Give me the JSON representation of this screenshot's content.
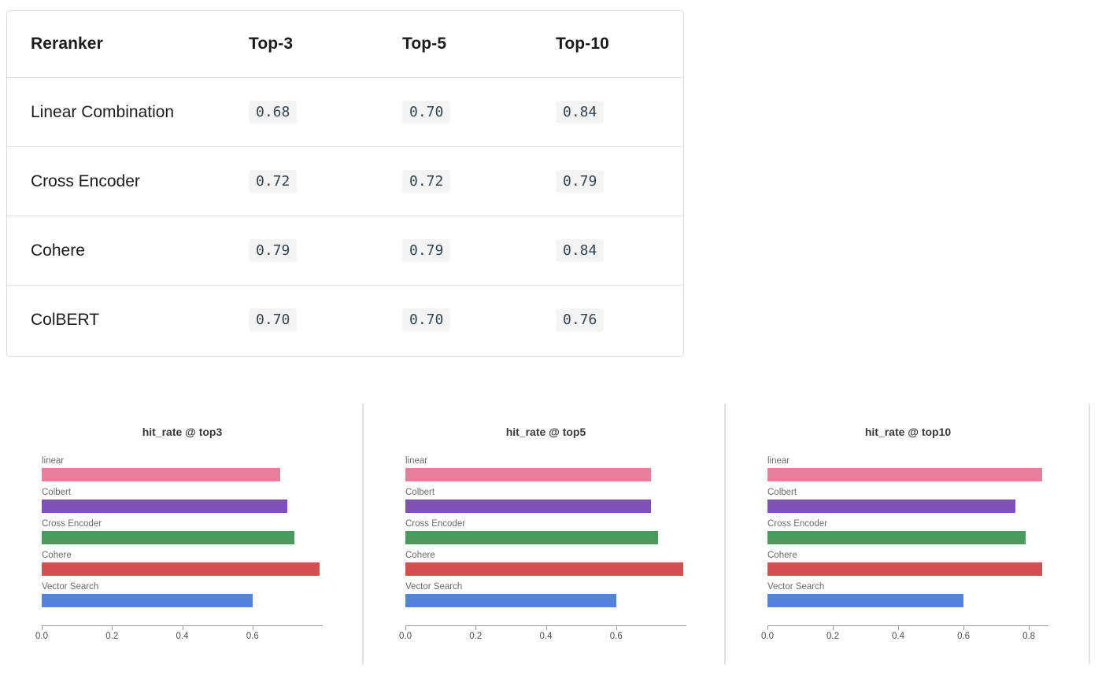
{
  "table": {
    "headers": [
      "Reranker",
      "Top-3",
      "Top-5",
      "Top-10"
    ],
    "rows": [
      {
        "name": "Linear Combination",
        "values": [
          "0.68",
          "0.70",
          "0.84"
        ]
      },
      {
        "name": "Cross Encoder",
        "values": [
          "0.72",
          "0.72",
          "0.79"
        ]
      },
      {
        "name": "Cohere",
        "values": [
          "0.79",
          "0.79",
          "0.84"
        ]
      },
      {
        "name": "ColBERT",
        "values": [
          "0.70",
          "0.70",
          "0.76"
        ]
      }
    ]
  },
  "chart_data": [
    {
      "type": "bar",
      "orientation": "horizontal",
      "title": "hit_rate @ top3",
      "categories": [
        "linear",
        "Colbert",
        "Cross Encoder",
        "Cohere",
        "Vector Search"
      ],
      "values": [
        0.68,
        0.7,
        0.72,
        0.79,
        0.6
      ],
      "colors": [
        "#e87d9e",
        "#7e52b8",
        "#4a9a5e",
        "#d64f4f",
        "#5282d9"
      ],
      "xlabel": "",
      "ylabel": "",
      "xlim": [
        0,
        0.8
      ],
      "xticks": [
        0.0,
        0.2,
        0.4,
        0.6
      ],
      "grid": false,
      "legend": "none"
    },
    {
      "type": "bar",
      "orientation": "horizontal",
      "title": "hit_rate @ top5",
      "categories": [
        "linear",
        "Colbert",
        "Cross Encoder",
        "Cohere",
        "Vector Search"
      ],
      "values": [
        0.7,
        0.7,
        0.72,
        0.79,
        0.6
      ],
      "colors": [
        "#e87d9e",
        "#7e52b8",
        "#4a9a5e",
        "#d64f4f",
        "#5282d9"
      ],
      "xlabel": "",
      "ylabel": "",
      "xlim": [
        0,
        0.8
      ],
      "xticks": [
        0.0,
        0.2,
        0.4,
        0.6
      ],
      "grid": false,
      "legend": "none"
    },
    {
      "type": "bar",
      "orientation": "horizontal",
      "title": "hit_rate @ top10",
      "categories": [
        "linear",
        "Colbert",
        "Cross Encoder",
        "Cohere",
        "Vector Search"
      ],
      "values": [
        0.84,
        0.76,
        0.79,
        0.84,
        0.6
      ],
      "colors": [
        "#e87d9e",
        "#7e52b8",
        "#4a9a5e",
        "#d64f4f",
        "#5282d9"
      ],
      "xlabel": "",
      "ylabel": "",
      "xlim": [
        0,
        0.86
      ],
      "xticks": [
        0.0,
        0.2,
        0.4,
        0.6,
        0.8
      ],
      "grid": false,
      "legend": "none"
    }
  ]
}
